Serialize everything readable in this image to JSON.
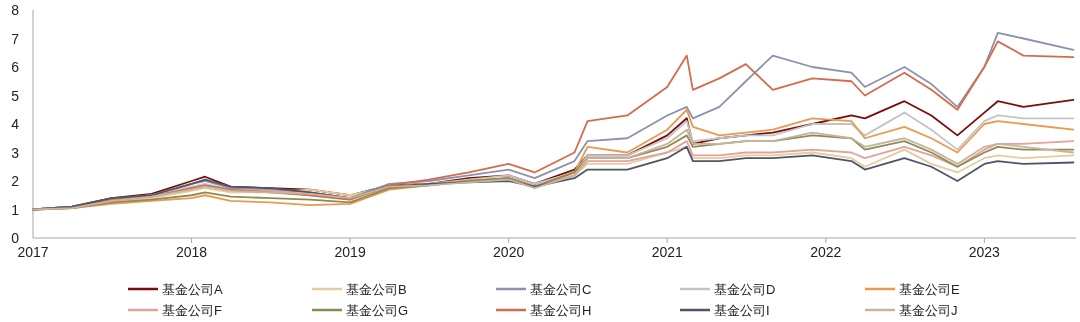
{
  "chart_data": {
    "type": "line",
    "x": [
      "2017-01",
      "2017-04",
      "2017-07",
      "2017-10",
      "2018-01",
      "2018-02",
      "2018-04",
      "2018-07",
      "2018-10",
      "2019-01",
      "2019-04",
      "2019-07",
      "2019-10",
      "2020-01",
      "2020-03",
      "2020-06",
      "2020-07",
      "2020-10",
      "2021-01",
      "2021-02-15",
      "2021-03",
      "2021-05",
      "2021-07",
      "2021-09",
      "2021-12",
      "2022-03",
      "2022-04",
      "2022-07",
      "2022-09",
      "2022-10-31",
      "2023-01",
      "2023-02",
      "2023-04",
      "2023-07-25"
    ],
    "series": [
      {
        "name": "基金公司A",
        "color": "#7b0c0c",
        "values": [
          1.0,
          1.1,
          1.4,
          1.55,
          2.0,
          2.15,
          1.8,
          1.75,
          1.7,
          1.5,
          1.85,
          1.9,
          2.1,
          2.2,
          1.9,
          2.4,
          2.9,
          2.9,
          3.6,
          4.2,
          3.3,
          3.5,
          3.6,
          3.7,
          4.0,
          4.3,
          4.2,
          4.8,
          4.3,
          3.6,
          4.4,
          4.8,
          4.6,
          4.85
        ]
      },
      {
        "name": "基金公司B",
        "color": "#e6cba0",
        "values": [
          1.0,
          1.05,
          1.3,
          1.4,
          1.65,
          1.75,
          1.6,
          1.6,
          1.7,
          1.5,
          1.8,
          1.9,
          2.0,
          2.1,
          1.8,
          2.2,
          2.6,
          2.6,
          3.0,
          3.2,
          2.8,
          2.8,
          2.9,
          2.9,
          3.0,
          2.8,
          2.5,
          3.1,
          2.6,
          2.3,
          2.8,
          2.9,
          2.8,
          2.9
        ]
      },
      {
        "name": "基金公司C",
        "color": "#8a93ab",
        "values": [
          1.0,
          1.1,
          1.35,
          1.5,
          1.9,
          2.0,
          1.75,
          1.7,
          1.6,
          1.4,
          1.9,
          2.0,
          2.2,
          2.4,
          2.1,
          2.7,
          3.4,
          3.5,
          4.3,
          4.6,
          4.2,
          4.6,
          5.5,
          6.4,
          6.0,
          5.8,
          5.3,
          6.0,
          5.4,
          4.6,
          6.0,
          7.2,
          7.0,
          6.6
        ]
      },
      {
        "name": "基金公司D",
        "color": "#c4c4c4",
        "values": [
          1.0,
          1.1,
          1.35,
          1.5,
          1.8,
          1.9,
          1.7,
          1.65,
          1.55,
          1.4,
          1.8,
          1.9,
          2.05,
          2.2,
          1.9,
          2.3,
          2.9,
          2.9,
          3.5,
          4.1,
          3.4,
          3.5,
          3.6,
          3.6,
          4.0,
          4.0,
          3.6,
          4.4,
          3.8,
          3.1,
          4.1,
          4.3,
          4.2,
          4.2
        ]
      },
      {
        "name": "基金公司E",
        "color": "#e99a4e",
        "values": [
          1.0,
          1.05,
          1.2,
          1.3,
          1.4,
          1.5,
          1.3,
          1.25,
          1.15,
          1.2,
          1.7,
          1.85,
          2.0,
          2.1,
          1.8,
          2.3,
          3.2,
          3.0,
          3.8,
          4.5,
          3.9,
          3.6,
          3.7,
          3.8,
          4.2,
          4.1,
          3.5,
          3.9,
          3.5,
          3.0,
          4.0,
          4.1,
          4.0,
          3.8
        ]
      },
      {
        "name": "基金公司F",
        "color": "#e3a39a",
        "values": [
          1.0,
          1.05,
          1.3,
          1.45,
          1.75,
          1.85,
          1.7,
          1.65,
          1.5,
          1.35,
          1.8,
          1.9,
          2.0,
          2.1,
          1.8,
          2.2,
          2.7,
          2.7,
          3.0,
          3.4,
          2.9,
          2.9,
          3.0,
          3.0,
          3.1,
          3.0,
          2.8,
          3.2,
          2.9,
          2.5,
          3.1,
          3.3,
          3.3,
          3.4
        ]
      },
      {
        "name": "基金公司G",
        "color": "#8c8c52",
        "values": [
          1.0,
          1.05,
          1.25,
          1.35,
          1.5,
          1.6,
          1.45,
          1.4,
          1.35,
          1.25,
          1.75,
          1.85,
          2.0,
          2.1,
          1.8,
          2.3,
          2.8,
          2.8,
          3.2,
          3.6,
          3.2,
          3.3,
          3.4,
          3.4,
          3.6,
          3.5,
          3.1,
          3.4,
          3.0,
          2.5,
          3.0,
          3.2,
          3.1,
          3.1
        ]
      },
      {
        "name": "基金公司H",
        "color": "#d56b4b",
        "values": [
          1.0,
          1.1,
          1.35,
          1.45,
          1.75,
          1.85,
          1.7,
          1.6,
          1.5,
          1.35,
          1.85,
          2.05,
          2.3,
          2.6,
          2.3,
          3.0,
          4.1,
          4.3,
          5.3,
          6.4,
          5.2,
          5.6,
          6.1,
          5.2,
          5.6,
          5.5,
          5.0,
          5.8,
          5.2,
          4.5,
          6.0,
          6.9,
          6.4,
          6.35
        ]
      },
      {
        "name": "基金公司I",
        "color": "#4f5568",
        "values": [
          1.0,
          1.1,
          1.4,
          1.5,
          1.9,
          2.05,
          1.8,
          1.75,
          1.6,
          1.4,
          1.8,
          1.9,
          1.95,
          2.0,
          1.8,
          2.1,
          2.4,
          2.4,
          2.8,
          3.2,
          2.7,
          2.7,
          2.8,
          2.8,
          2.9,
          2.7,
          2.4,
          2.8,
          2.5,
          2.0,
          2.6,
          2.7,
          2.6,
          2.65
        ]
      },
      {
        "name": "基金公司J",
        "color": "#c8b49a",
        "values": [
          1.0,
          1.05,
          1.3,
          1.45,
          1.7,
          1.8,
          1.65,
          1.6,
          1.55,
          1.4,
          1.8,
          1.85,
          1.95,
          2.05,
          1.75,
          2.2,
          2.8,
          2.8,
          3.3,
          3.8,
          3.3,
          3.3,
          3.4,
          3.4,
          3.7,
          3.5,
          3.2,
          3.5,
          3.1,
          2.6,
          3.2,
          3.3,
          3.2,
          3.0
        ]
      }
    ],
    "xlim": [
      "2017-01-01",
      "2023-07-31"
    ],
    "xticks": [
      {
        "value": "2017-01-01",
        "label": "2017"
      },
      {
        "value": "2018-01-01",
        "label": "2018"
      },
      {
        "value": "2019-01-01",
        "label": "2019"
      },
      {
        "value": "2020-01-01",
        "label": "2020"
      },
      {
        "value": "2021-01-01",
        "label": "2021"
      },
      {
        "value": "2022-01-01",
        "label": "2022"
      },
      {
        "value": "2023-01-01",
        "label": "2023"
      }
    ],
    "ylim": [
      0,
      8
    ],
    "yticks": [
      0,
      1,
      2,
      3,
      4,
      5,
      6,
      7,
      8
    ],
    "legend": "bottom"
  }
}
